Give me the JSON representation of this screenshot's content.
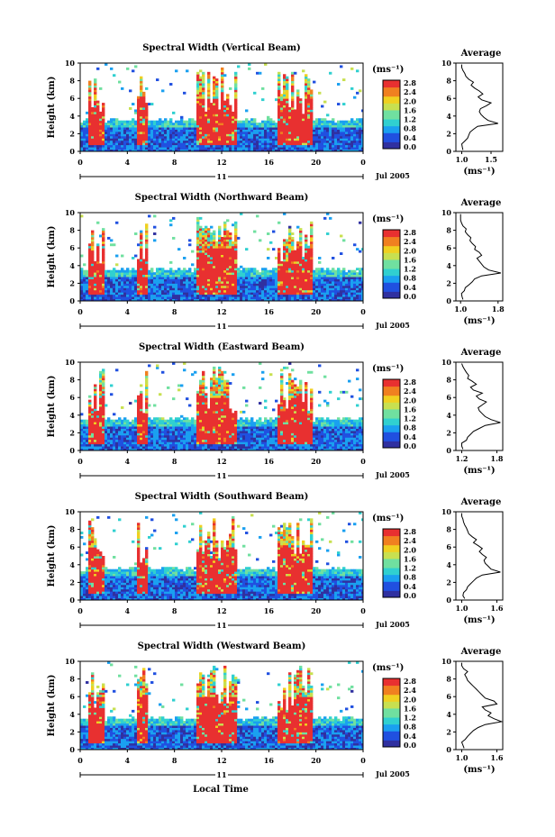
{
  "chart_data": {
    "type": "heatmap",
    "figure_xlabel": "Local Time",
    "shared": {
      "heatmap_ylabel": "Height (km)",
      "heatmap_yticks": [
        "0",
        "2",
        "4",
        "6",
        "8",
        "10"
      ],
      "heatmap_xticks": [
        "0",
        "4",
        "8",
        "12",
        "16",
        "20",
        "0"
      ],
      "ylim_km": [
        0,
        10
      ],
      "xlim_hours": [
        0,
        24
      ],
      "day_label": "11",
      "date_label": "Jul 2005",
      "colorbar_unit": "(ms⁻¹)",
      "colorbar_ticks": [
        "0.0",
        "0.4",
        "0.8",
        "1.2",
        "1.6",
        "2.0",
        "2.4",
        "2.8"
      ],
      "colorbar_range": [
        0.0,
        3.0
      ],
      "colormap": [
        "#3030a0",
        "#2050e0",
        "#1aa0f0",
        "#30d0d0",
        "#70e0a0",
        "#c8e050",
        "#f0d020",
        "#f08020",
        "#e83030"
      ],
      "profile_title": "Average",
      "profile_xlabel": "(ms⁻¹)",
      "profile_yticks": [
        "0",
        "2",
        "4",
        "6",
        "8",
        "10"
      ]
    },
    "panels": [
      {
        "title": "Spectral Width (Vertical Beam)",
        "profile_xticks": [
          "1.0",
          "1.5"
        ],
        "profile_xlim": [
          0.9,
          1.7
        ],
        "profile_x": [
          1.02,
          1.01,
          1.0,
          1.05,
          1.1,
          1.12,
          1.14,
          1.2,
          1.27,
          1.62,
          1.45,
          1.38,
          1.33,
          1.3,
          1.32,
          1.42,
          1.5,
          1.34,
          1.28,
          1.36,
          1.3,
          1.22,
          1.16,
          1.2,
          1.12,
          1.07,
          1.05,
          1.02,
          1.0,
          1.0
        ]
      },
      {
        "title": "Spectral Width (Northward Beam)",
        "profile_xticks": [
          "1.0",
          "1.8"
        ],
        "profile_xlim": [
          0.9,
          1.9
        ],
        "profile_x": [
          1.05,
          1.03,
          1.02,
          1.08,
          1.1,
          1.18,
          1.25,
          1.3,
          1.45,
          1.86,
          1.6,
          1.5,
          1.45,
          1.4,
          1.35,
          1.45,
          1.4,
          1.3,
          1.32,
          1.25,
          1.2,
          1.22,
          1.15,
          1.1,
          1.12,
          1.05,
          1.02,
          1.0,
          1.0,
          1.0
        ]
      },
      {
        "title": "Spectral Width (Eastward Beam)",
        "profile_xticks": [
          "1.2",
          "1.8"
        ],
        "profile_xlim": [
          1.1,
          1.9
        ],
        "profile_x": [
          1.22,
          1.2,
          1.2,
          1.28,
          1.3,
          1.35,
          1.4,
          1.5,
          1.6,
          1.86,
          1.7,
          1.6,
          1.55,
          1.5,
          1.48,
          1.55,
          1.62,
          1.5,
          1.45,
          1.55,
          1.4,
          1.35,
          1.45,
          1.38,
          1.3,
          1.32,
          1.28,
          1.25,
          1.22,
          1.2
        ]
      },
      {
        "title": "Spectral Width (Southward Beam)",
        "profile_xticks": [
          "1.0",
          "1.6"
        ],
        "profile_xlim": [
          0.9,
          1.7
        ],
        "profile_x": [
          1.05,
          1.02,
          1.03,
          1.08,
          1.1,
          1.15,
          1.2,
          1.25,
          1.35,
          1.66,
          1.5,
          1.45,
          1.4,
          1.38,
          1.42,
          1.35,
          1.3,
          1.35,
          1.28,
          1.2,
          1.25,
          1.18,
          1.12,
          1.1,
          1.08,
          1.05,
          1.03,
          1.02,
          1.0,
          1.0
        ]
      },
      {
        "title": "Spectral Width (Westward Beam)",
        "profile_xticks": [
          "1.0",
          "1.6"
        ],
        "profile_xlim": [
          0.9,
          1.7
        ],
        "profile_x": [
          1.04,
          1.02,
          1.0,
          1.06,
          1.1,
          1.15,
          1.2,
          1.28,
          1.4,
          1.68,
          1.55,
          1.45,
          1.5,
          1.4,
          1.35,
          1.6,
          1.55,
          1.4,
          1.35,
          1.3,
          1.25,
          1.2,
          1.15,
          1.1,
          1.08,
          1.05,
          1.1,
          1.03,
          1.0,
          1.0
        ]
      }
    ]
  }
}
